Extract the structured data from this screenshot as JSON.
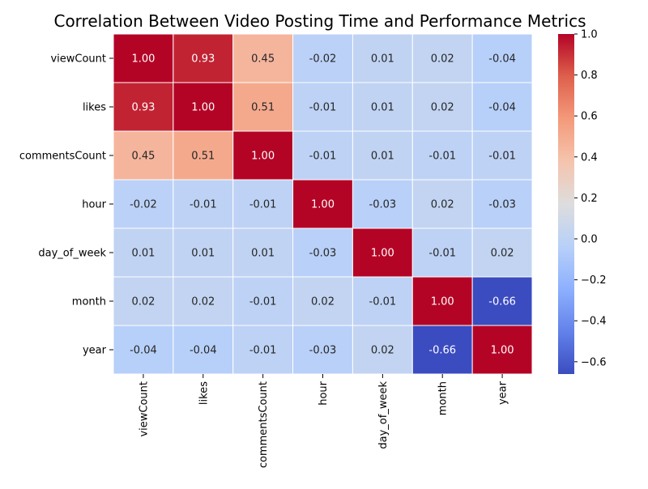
{
  "chart_data": {
    "type": "heatmap",
    "title": "Correlation Between Video Posting Time and Performance Metrics",
    "xlabel": "",
    "ylabel": "",
    "row_labels": [
      "viewCount",
      "likes",
      "commentsCount",
      "hour",
      "day_of_week",
      "month",
      "year"
    ],
    "col_labels": [
      "viewCount",
      "likes",
      "commentsCount",
      "hour",
      "day_of_week",
      "month",
      "year"
    ],
    "values": [
      [
        1.0,
        0.93,
        0.45,
        -0.02,
        0.01,
        0.02,
        -0.04
      ],
      [
        0.93,
        1.0,
        0.51,
        -0.01,
        0.01,
        0.02,
        -0.04
      ],
      [
        0.45,
        0.51,
        1.0,
        -0.01,
        0.01,
        -0.01,
        -0.01
      ],
      [
        -0.02,
        -0.01,
        -0.01,
        1.0,
        -0.03,
        0.02,
        -0.03
      ],
      [
        0.01,
        0.01,
        0.01,
        -0.03,
        1.0,
        -0.01,
        0.02
      ],
      [
        0.02,
        0.02,
        -0.01,
        0.02,
        -0.01,
        1.0,
        -0.66
      ],
      [
        -0.04,
        -0.04,
        -0.01,
        -0.03,
        0.02,
        -0.66,
        1.0
      ]
    ],
    "value_format": "0.00",
    "colormap": "coolwarm",
    "vmin": -0.66,
    "vmax": 1.0,
    "colorbar_ticks": [
      1.0,
      0.8,
      0.6,
      0.4,
      0.2,
      0.0,
      -0.2,
      -0.4,
      -0.6
    ],
    "colorbar_tick_labels": [
      "1.0",
      "0.8",
      "0.6",
      "0.4",
      "0.2",
      "0.0",
      "−0.2",
      "−0.4",
      "−0.6"
    ],
    "grid": false,
    "legend": "colorbar-right"
  }
}
